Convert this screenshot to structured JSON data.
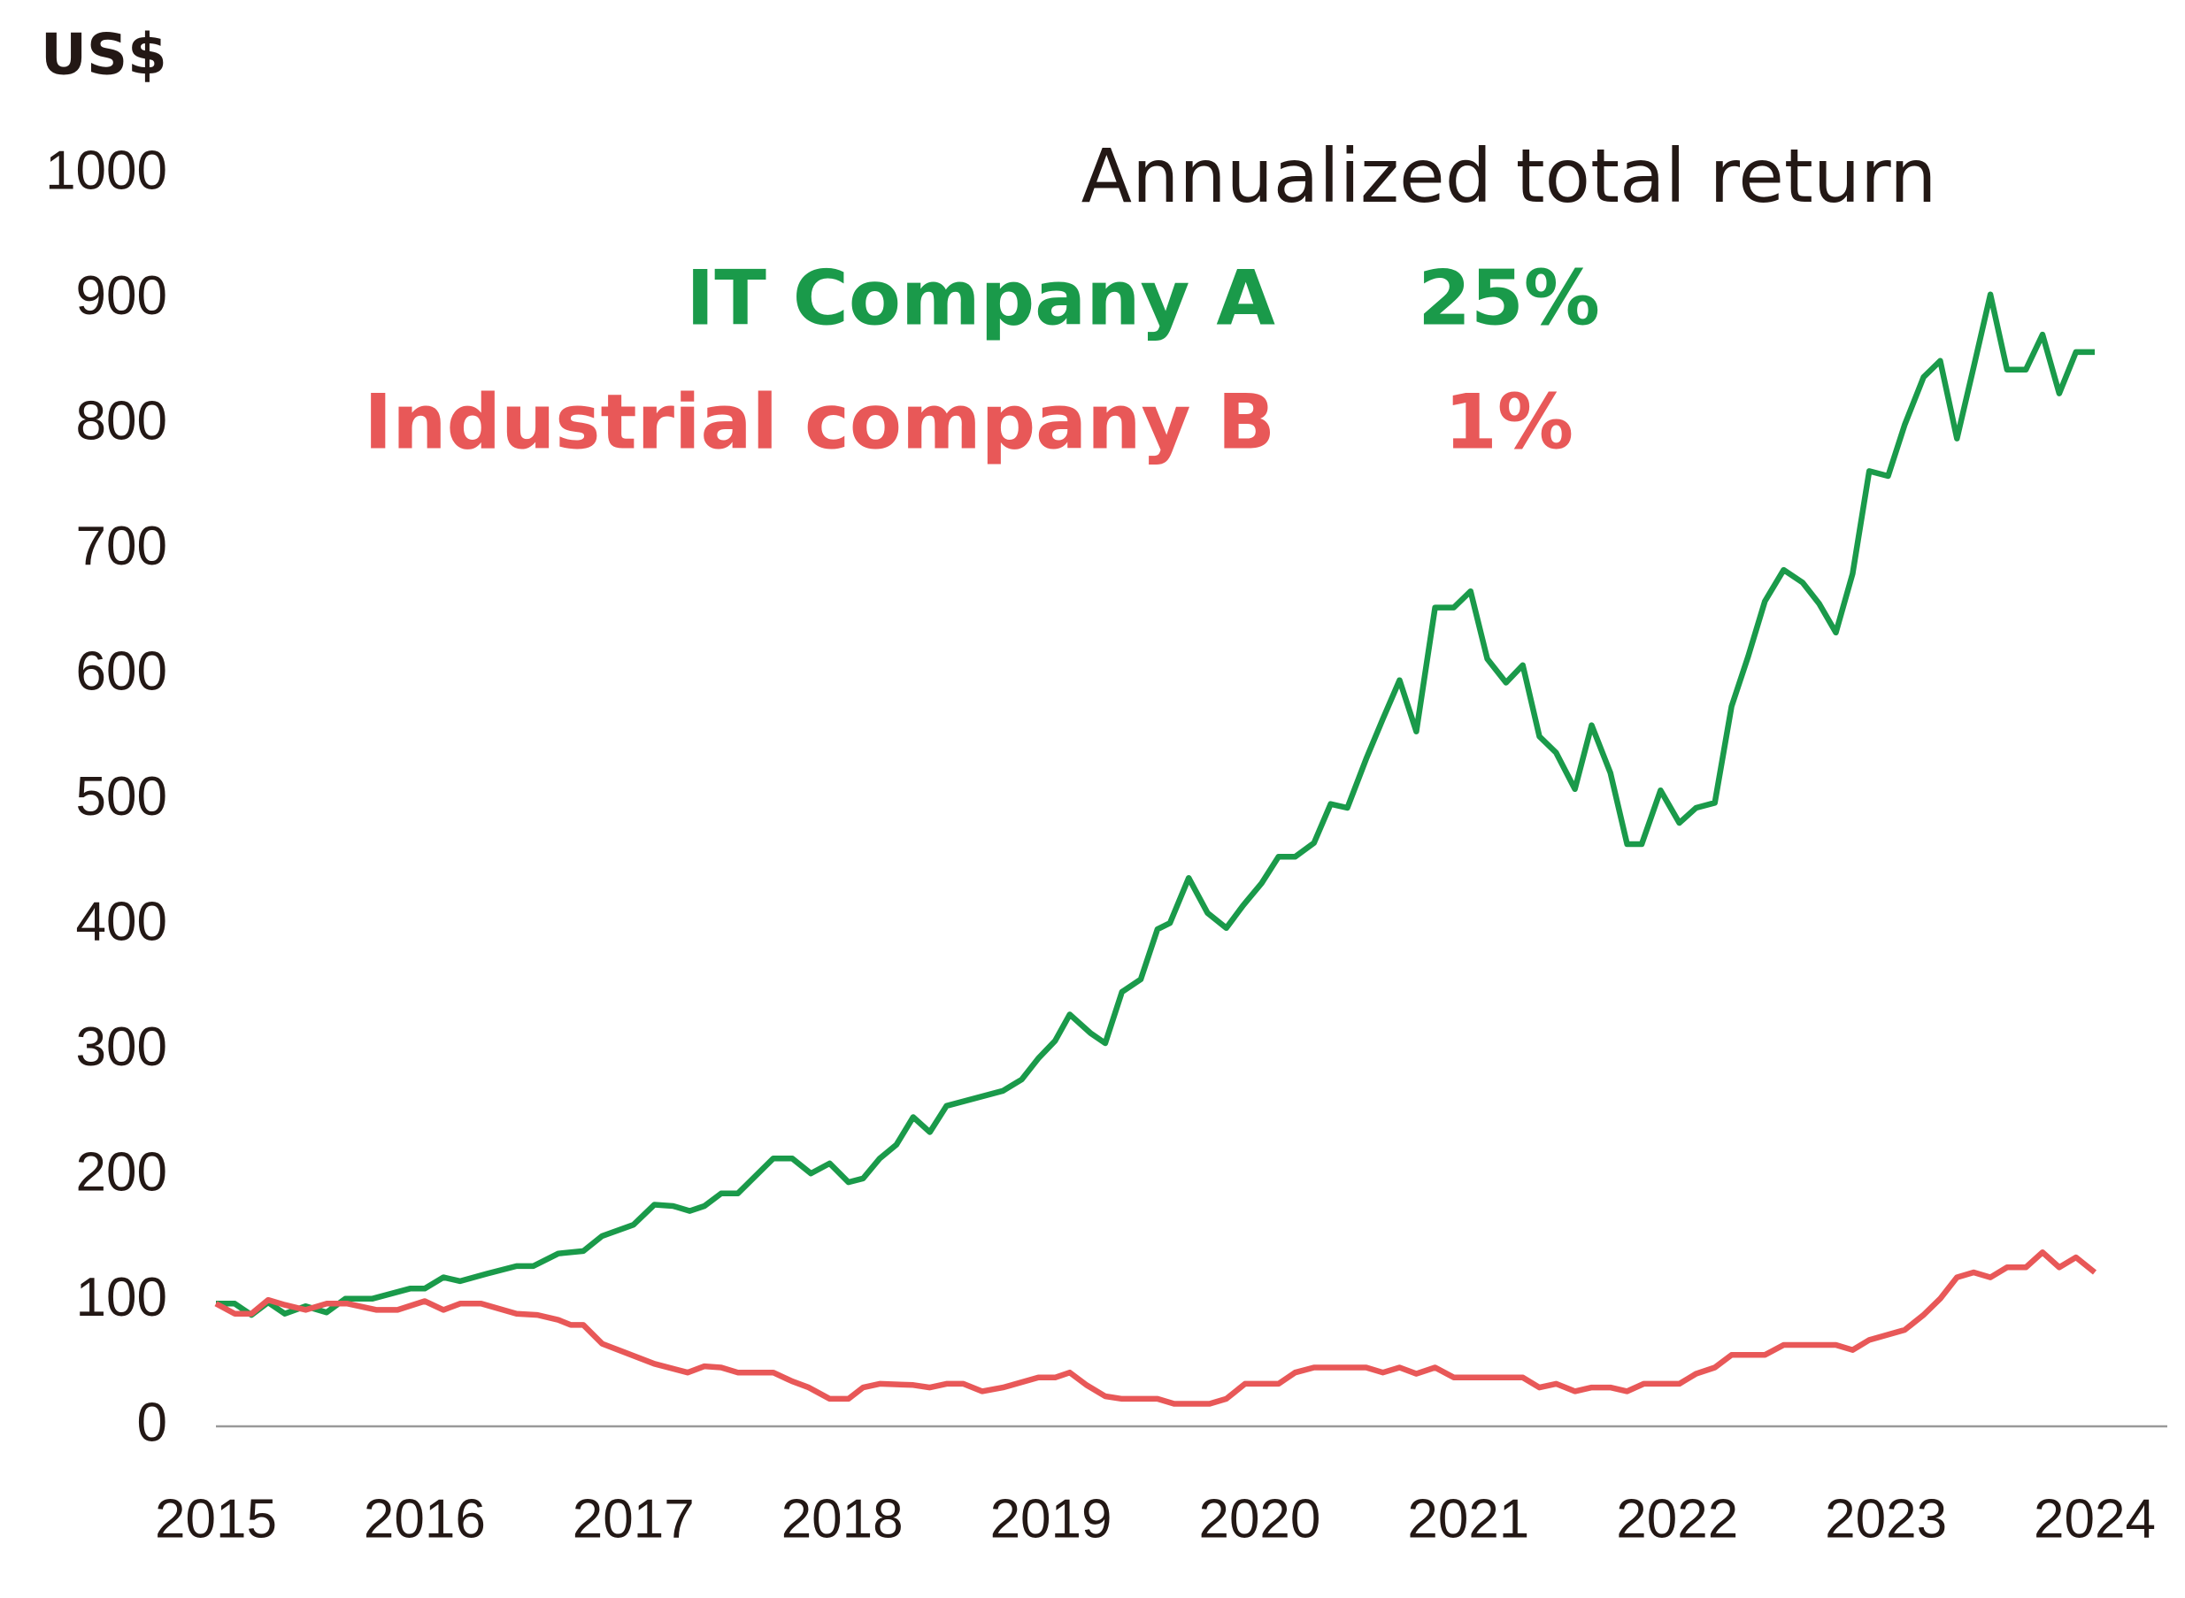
{
  "chart_data": {
    "type": "line",
    "ylabel": "US$",
    "legend_title": "Annualized total return",
    "xlim": [
      2015,
      2024
    ],
    "xticks": [
      2015,
      2016,
      2017,
      2018,
      2019,
      2020,
      2021,
      2022,
      2023,
      2024
    ],
    "ylim": [
      0,
      1000
    ],
    "yticks": [
      0,
      100,
      200,
      300,
      400,
      500,
      600,
      700,
      800,
      900,
      1000
    ],
    "grid": false,
    "series": [
      {
        "name": "IT Company A",
        "color": "#1a9a4a",
        "return": 25,
        "return_label": "25%",
        "x": [
          2015.0,
          2015.09,
          2015.17,
          2015.25,
          2015.33,
          2015.43,
          2015.53,
          2015.62,
          2015.75,
          2015.93,
          2016.0,
          2016.09,
          2016.17,
          2016.3,
          2016.44,
          2016.52,
          2016.64,
          2016.76,
          2016.85,
          2017.0,
          2017.1,
          2017.19,
          2017.27,
          2017.34,
          2017.42,
          2017.5,
          2017.67,
          2017.76,
          2017.85,
          2017.94,
          2018.03,
          2018.1,
          2018.18,
          2018.26,
          2018.34,
          2018.42,
          2018.5,
          2018.77,
          2018.86,
          2018.94,
          2019.02,
          2019.09,
          2019.19,
          2019.26,
          2019.34,
          2019.43,
          2019.51,
          2019.57,
          2019.66,
          2019.75,
          2019.84,
          2019.92,
          2020.01,
          2020.09,
          2020.17,
          2020.26,
          2020.34,
          2020.42,
          2020.51,
          2020.59,
          2020.67,
          2020.75,
          2020.84,
          2020.93,
          2021.01,
          2021.09,
          2021.18,
          2021.26,
          2021.34,
          2021.42,
          2021.51,
          2021.59,
          2021.68,
          2021.76,
          2021.83,
          2021.92,
          2022.01,
          2022.09,
          2022.18,
          2022.26,
          2022.34,
          2022.42,
          2022.51,
          2022.6,
          2022.68,
          2022.76,
          2022.84,
          2022.92,
          2023.01,
          2023.09,
          2023.18,
          2023.26,
          2023.34,
          2023.42,
          2023.5,
          2023.58,
          2023.67,
          2023.75,
          2023.83,
          2023.91,
          2024.0
        ],
        "values": [
          98,
          98,
          89,
          99,
          90,
          96,
          91,
          102,
          102,
          110,
          110,
          119,
          116,
          122,
          128,
          128,
          138,
          140,
          152,
          161,
          177,
          176,
          172,
          176,
          186,
          186,
          214,
          214,
          202,
          210,
          195,
          198,
          214,
          225,
          247,
          235,
          256,
          268,
          277,
          294,
          308,
          329,
          314,
          306,
          347,
          357,
          397,
          402,
          438,
          410,
          398,
          416,
          434,
          455,
          455,
          466,
          497,
          494,
          533,
          565,
          596,
          555,
          654,
          654,
          667,
          613,
          594,
          608,
          551,
          538,
          509,
          560,
          522,
          465,
          465,
          508,
          482,
          494,
          498,
          575,
          615,
          659,
          684,
          674,
          657,
          634,
          681,
          763,
          759,
          800,
          838,
          851,
          789,
          846,
          904,
          844,
          844,
          872,
          825,
          858,
          858
        ]
      },
      {
        "name": "Industrial company B",
        "color": "#e85858",
        "return": 1,
        "return_label": "1%",
        "x": [
          2015.0,
          2015.09,
          2015.17,
          2015.25,
          2015.33,
          2015.43,
          2015.53,
          2015.63,
          2015.77,
          2015.87,
          2016.0,
          2016.09,
          2016.17,
          2016.27,
          2016.44,
          2016.54,
          2016.64,
          2016.7,
          2016.76,
          2016.85,
          2017.1,
          2017.26,
          2017.34,
          2017.42,
          2017.5,
          2017.67,
          2017.76,
          2017.84,
          2017.94,
          2018.03,
          2018.1,
          2018.18,
          2018.34,
          2018.42,
          2018.5,
          2018.58,
          2018.67,
          2018.77,
          2018.94,
          2019.02,
          2019.09,
          2019.17,
          2019.26,
          2019.34,
          2019.51,
          2019.59,
          2019.76,
          2019.84,
          2019.93,
          2020.09,
          2020.17,
          2020.26,
          2020.42,
          2020.51,
          2020.59,
          2020.67,
          2020.75,
          2020.84,
          2020.93,
          2021.26,
          2021.34,
          2021.42,
          2021.51,
          2021.59,
          2021.68,
          2021.76,
          2021.84,
          2022.01,
          2022.09,
          2022.18,
          2022.26,
          2022.42,
          2022.51,
          2022.76,
          2022.84,
          2022.92,
          2023.09,
          2023.18,
          2023.26,
          2023.34,
          2023.42,
          2023.5,
          2023.58,
          2023.67,
          2023.75,
          2023.83,
          2023.91,
          2024.0
        ],
        "values": [
          98,
          90,
          90,
          101,
          97,
          93,
          98,
          98,
          93,
          93,
          100,
          93,
          98,
          98,
          90,
          89,
          85,
          81,
          81,
          66,
          50,
          43,
          48,
          47,
          43,
          43,
          36,
          31,
          22,
          22,
          31,
          34,
          33,
          31,
          34,
          34,
          28,
          31,
          39,
          39,
          43,
          33,
          24,
          22,
          22,
          18,
          18,
          22,
          34,
          34,
          43,
          47,
          47,
          47,
          43,
          47,
          42,
          47,
          39,
          39,
          31,
          34,
          28,
          31,
          31,
          28,
          34,
          34,
          42,
          47,
          57,
          57,
          65,
          65,
          61,
          69,
          77,
          89,
          102,
          119,
          123,
          119,
          127,
          127,
          139,
          127,
          135,
          123
        ]
      }
    ]
  }
}
